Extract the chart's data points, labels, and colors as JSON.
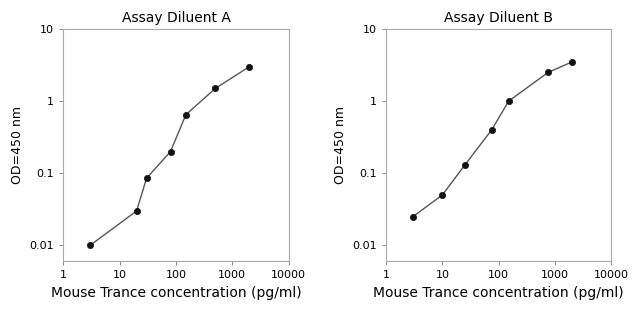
{
  "panel_A": {
    "title": "Assay Diluent A",
    "x": [
      3,
      20,
      30,
      80,
      150,
      500,
      2000
    ],
    "y": [
      0.01,
      0.03,
      0.085,
      0.2,
      0.65,
      1.5,
      3.0
    ],
    "xlabel": "Mouse Trance concentration (pg/ml)",
    "ylabel": "OD=450 nm",
    "xlim": [
      1.5,
      6000
    ],
    "ylim": [
      0.006,
      10
    ]
  },
  "panel_B": {
    "title": "Assay Diluent B",
    "x": [
      3,
      10,
      25,
      75,
      150,
      750,
      2000
    ],
    "y": [
      0.025,
      0.05,
      0.13,
      0.4,
      1.0,
      2.5,
      3.5
    ],
    "xlabel": "Mouse Trance concentration (pg/ml)",
    "ylabel": "OD=450 nm",
    "xlim": [
      1.5,
      6000
    ],
    "ylim": [
      0.006,
      10
    ]
  },
  "xticks": [
    1,
    10,
    100,
    1000,
    10000
  ],
  "xtick_labels": [
    "1",
    "10",
    "100",
    "1000",
    "10000"
  ],
  "yticks": [
    0.01,
    0.1,
    1,
    10
  ],
  "ytick_labels": [
    "0.01",
    "0.1",
    "1",
    "10"
  ],
  "line_color": "#555555",
  "marker_color": "#111111",
  "marker_size": 4.5,
  "line_width": 1.0,
  "bg_color": "#ffffff",
  "axes_bg_color": "#ffffff",
  "spine_color": "#aaaaaa",
  "title_fontsize": 10,
  "label_fontsize": 9,
  "tick_fontsize": 8,
  "xlabel_fontsize": 10
}
